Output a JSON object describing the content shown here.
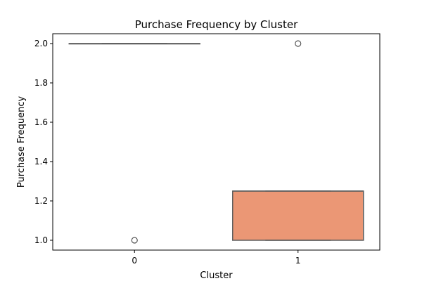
{
  "chart_data": {
    "type": "box",
    "title": "Purchase Frequency by Cluster",
    "xlabel": "Cluster",
    "ylabel": "Purchase Frequency",
    "categories": [
      "0",
      "1"
    ],
    "ylim": [
      0.95,
      2.05
    ],
    "yticks": [
      "1.0",
      "1.2",
      "1.4",
      "1.6",
      "1.8",
      "2.0"
    ],
    "grid": false,
    "boxes": [
      {
        "category": "0",
        "q1": 2.0,
        "median": 2.0,
        "q3": 2.0,
        "whisker_low": 2.0,
        "whisker_high": 2.0,
        "outliers": [
          1.0
        ],
        "color": "#8da0cb"
      },
      {
        "category": "1",
        "q1": 1.0,
        "median": 1.25,
        "q3": 1.25,
        "whisker_low": 1.0,
        "whisker_high": 1.25,
        "outliers": [
          2.0
        ],
        "color": "#eb9775"
      }
    ]
  }
}
